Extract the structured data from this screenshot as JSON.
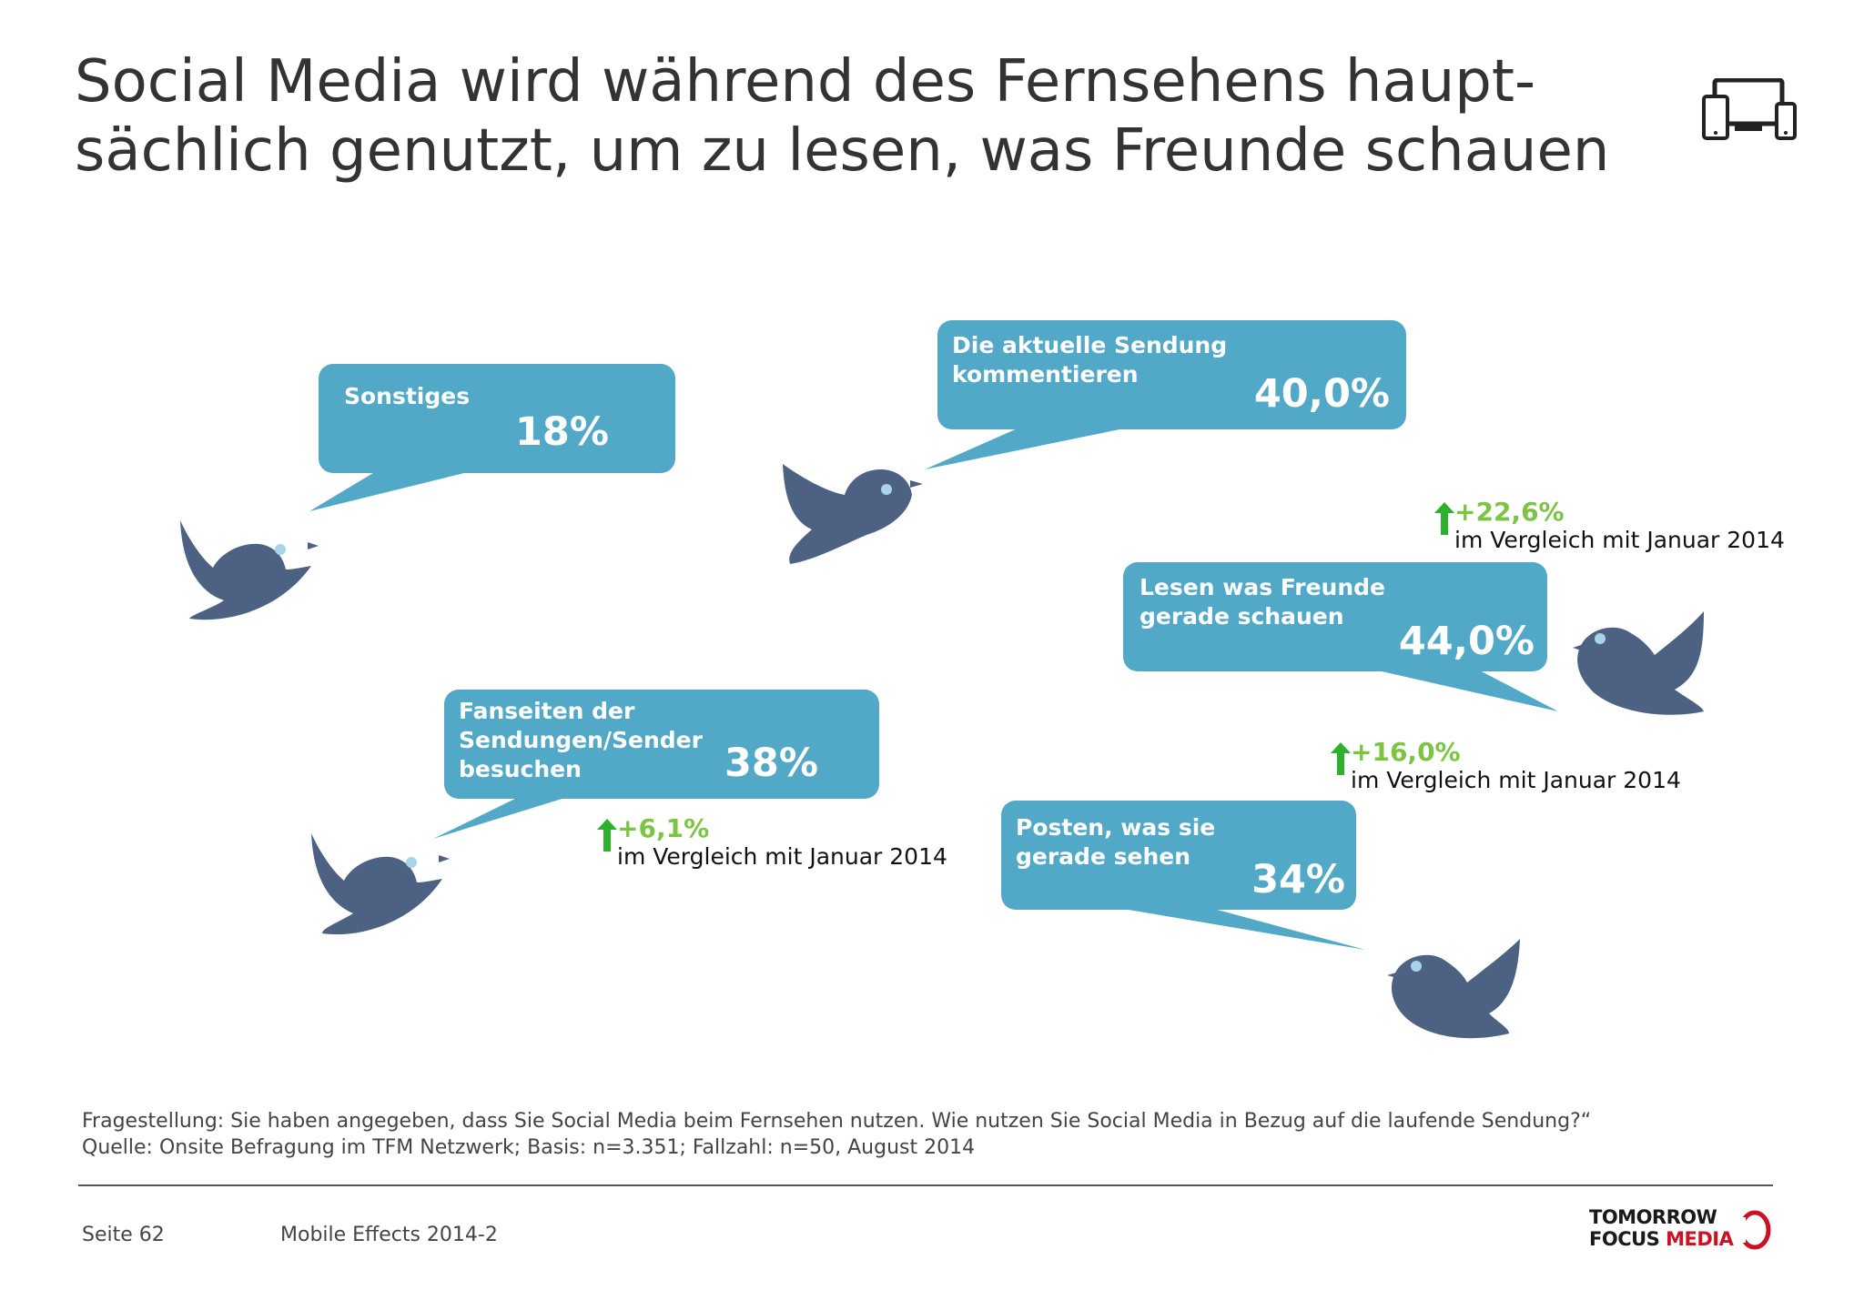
{
  "title": {
    "line1": "Social Media wird während des Fernsehens haupt-",
    "line2": "sächlich genutzt, um zu lesen, was Freunde schauen"
  },
  "header_icon": "devices-icon",
  "bubbles": [
    {
      "label_lines": [
        "Sonstiges"
      ],
      "value": "18%"
    },
    {
      "label_lines": [
        "Die aktuelle Sendung",
        "kommentieren"
      ],
      "value": "40,0%"
    },
    {
      "label_lines": [
        "Lesen was Freunde",
        "gerade schauen"
      ],
      "value": "44,0%"
    },
    {
      "label_lines": [
        "Fanseiten der",
        "Sendungen/Sender",
        "besuchen"
      ],
      "value": "38%"
    },
    {
      "label_lines": [
        "Posten, was sie",
        "gerade sehen"
      ],
      "value": "34%"
    }
  ],
  "changes": [
    {
      "delta": "+22,6%",
      "comparison": "im Vergleich mit Januar 2014"
    },
    {
      "delta": "+16,0%",
      "comparison": "im Vergleich mit Januar 2014"
    },
    {
      "delta": "+6,1%",
      "comparison": "im Vergleich mit Januar 2014"
    }
  ],
  "footnote": {
    "question": "Fragestellung: Sie haben angegeben, dass Sie Social Media beim Fernsehen nutzen. Wie nutzen Sie Social Media in Bezug auf die laufende Sendung?“",
    "source": "Quelle: Onsite Befragung im TFM Netzwerk; Basis: n=3.351; Fallzahl: n=50, August 2014"
  },
  "footer": {
    "page": "Seite 62",
    "report": "Mobile Effects 2014-2",
    "logo_line1": "TOMORROW",
    "logo_line2a": "FOCUS ",
    "logo_line2b": "MEDIA"
  },
  "colors": {
    "bubble": "#52a9c7",
    "bird": "#4d6283",
    "bird_eye": "#a9d3e8",
    "increase": "#7cc444",
    "logo_red": "#cc1122"
  },
  "icons": [
    "bird-icon",
    "up-arrow-icon",
    "devices-icon",
    "logo-mark"
  ]
}
